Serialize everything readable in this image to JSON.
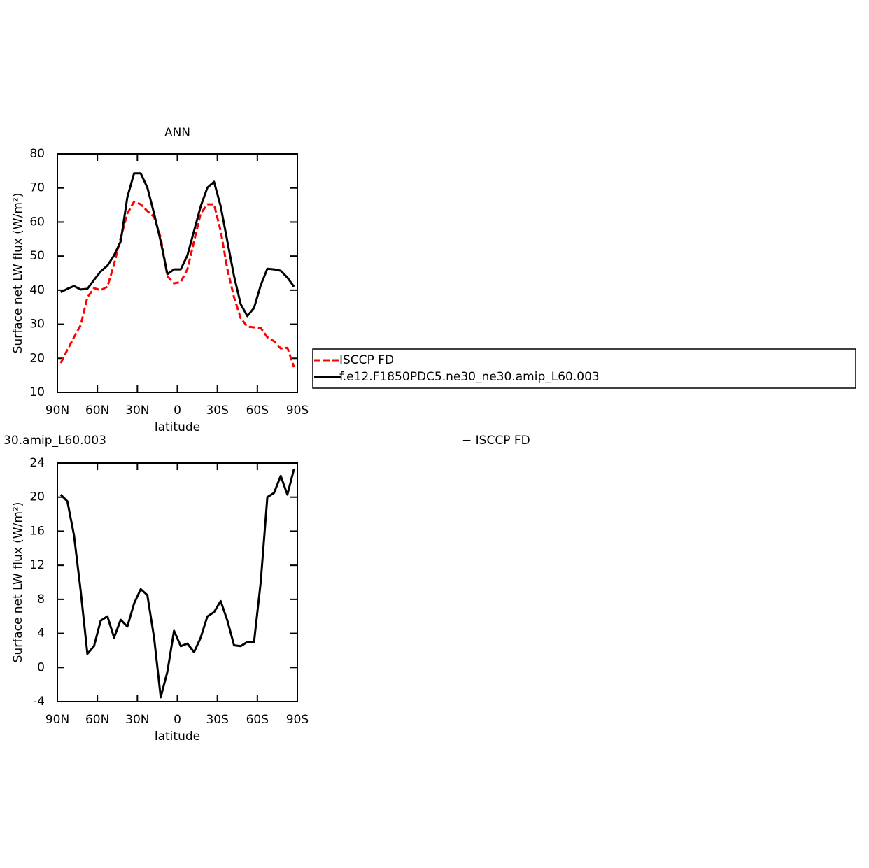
{
  "chart_data": [
    {
      "type": "line",
      "title": "ANN",
      "x_label": "latitude",
      "y_label": "Surface net LW flux (W/m²)",
      "x": [
        87.5,
        82.5,
        77.5,
        72.5,
        67.5,
        62.5,
        57.5,
        52.5,
        47.5,
        42.5,
        37.5,
        32.5,
        27.5,
        22.5,
        17.5,
        12.5,
        7.5,
        2.5,
        -2.5,
        -7.5,
        -12.5,
        -17.5,
        -22.5,
        -27.5,
        -32.5,
        -37.5,
        -42.5,
        -47.5,
        -52.5,
        -57.5,
        -62.5,
        -67.5,
        -72.5,
        -77.5,
        -82.5,
        -87.5
      ],
      "series": [
        {
          "name": "ISCCP FD",
          "color": "#ff0000",
          "dashed": true,
          "values": [
            18.6,
            22.5,
            26.2,
            29.7,
            37.9,
            40.6,
            40,
            41,
            47.6,
            55.4,
            62.5,
            66,
            65.2,
            63.2,
            61.5,
            55.4,
            44.1,
            42,
            42.4,
            46.1,
            54.3,
            62.5,
            65.2,
            65.2,
            57.4,
            46.1,
            37.9,
            31.8,
            29.3,
            29.1,
            28.9,
            26.2,
            25,
            22.9,
            23.1,
            17.4
          ]
        },
        {
          "name": "f.e12.F1850PDC5.ne30_ne30.amip_L60.003",
          "color": "#000000",
          "dashed": false,
          "values": [
            39.4,
            40.4,
            41.2,
            40.2,
            40.4,
            43,
            45.5,
            47.2,
            50.2,
            54.3,
            67.3,
            74.3,
            74.3,
            70.1,
            62.5,
            54.3,
            44.7,
            46.1,
            46.1,
            50.2,
            57.4,
            64.6,
            70.1,
            71.8,
            64.6,
            54.3,
            44.1,
            35.9,
            32.4,
            34.8,
            41.4,
            46.3,
            46.1,
            45.7,
            43.7,
            41
          ]
        }
      ],
      "xlim": [
        90,
        -90
      ],
      "xticks": [
        {
          "value": 90,
          "label": "90N"
        },
        {
          "value": 60,
          "label": "60N"
        },
        {
          "value": 30,
          "label": "30N"
        },
        0,
        {
          "value": -30,
          "label": "30S"
        },
        {
          "value": -60,
          "label": "60S"
        },
        {
          "value": -90,
          "label": "90S"
        }
      ],
      "ylim": [
        10,
        80
      ],
      "yticks": [
        10,
        20,
        30,
        40,
        50,
        60,
        70,
        80
      ],
      "legend": "right"
    },
    {
      "type": "line",
      "title": "30.amip_L60.003",
      "subtitle": "− ISCCP FD",
      "x_label": "latitude",
      "y_label": "Surface net LW flux (W/m²)",
      "x": [
        87.5,
        82.5,
        77.5,
        72.5,
        67.5,
        62.5,
        57.5,
        52.5,
        47.5,
        42.5,
        37.5,
        32.5,
        27.5,
        22.5,
        17.5,
        12.5,
        7.5,
        2.5,
        -2.5,
        -7.5,
        -12.5,
        -17.5,
        -22.5,
        -27.5,
        -32.5,
        -37.5,
        -42.5,
        -47.5,
        -52.5,
        -57.5,
        -62.5,
        -67.5,
        -72.5,
        -77.5,
        -82.5,
        -87.5
      ],
      "series": [
        {
          "color": "#000000",
          "dashed": false,
          "values": [
            20.3,
            19.5,
            15.5,
            9,
            1.6,
            2.5,
            5.5,
            6,
            3.5,
            5.6,
            4.8,
            7.5,
            9.2,
            8.5,
            3.5,
            -3.5,
            -0.5,
            4.3,
            2.5,
            2.8,
            1.8,
            3.5,
            6,
            6.5,
            7.8,
            5.5,
            2.6,
            2.5,
            3,
            3,
            10,
            20,
            20.5,
            22.5,
            20.3,
            23.3
          ]
        }
      ],
      "xlim": [
        90,
        -90
      ],
      "xticks": [
        {
          "value": 90,
          "label": "90N"
        },
        {
          "value": 60,
          "label": "60N"
        },
        {
          "value": 30,
          "label": "30N"
        },
        0,
        {
          "value": -30,
          "label": "30S"
        },
        {
          "value": -60,
          "label": "60S"
        },
        {
          "value": -90,
          "label": "90S"
        }
      ],
      "ylim": [
        -4,
        24
      ],
      "yticks": [
        -4,
        0,
        4,
        8,
        12,
        16,
        20,
        24
      ]
    }
  ]
}
